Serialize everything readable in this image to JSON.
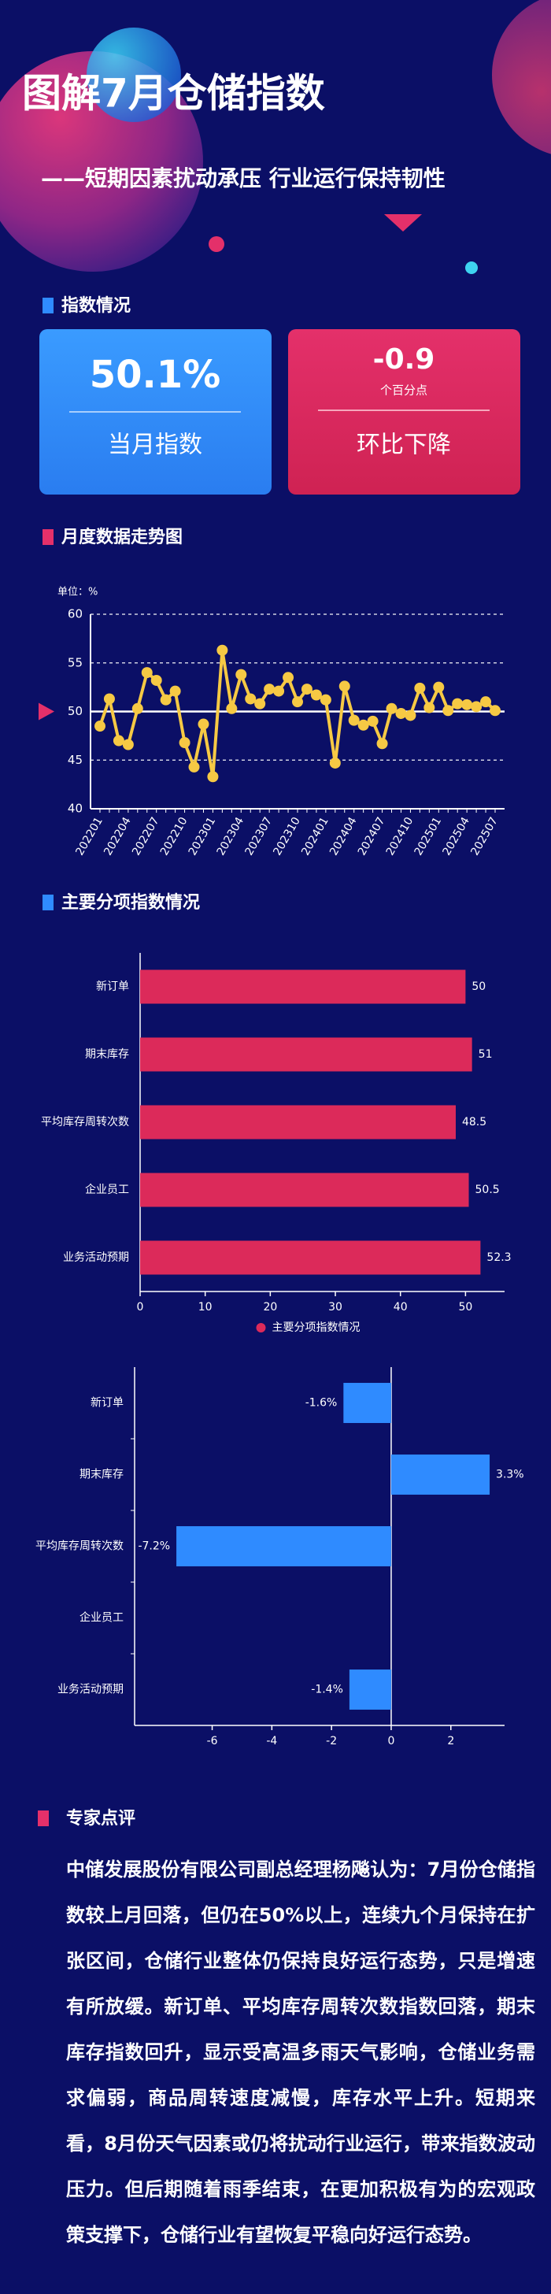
{
  "header": {
    "title": "图解7月仓储指数",
    "subtitle": "——短期因素扰动承压 行业运行保持韧性"
  },
  "sections": [
    "指数情况",
    "月度数据走势图",
    "主要分项指数情况",
    "专家点评"
  ],
  "kpis": [
    {
      "value": "50.1%",
      "label": "当月指数"
    },
    {
      "value": "-0.9",
      "unit": "个百分点",
      "label": "环比下降"
    }
  ],
  "chart_data": [
    {
      "type": "line",
      "unit_label": "单位：%",
      "categories": [
        "202201",
        null,
        null,
        "202204",
        null,
        null,
        "202207",
        null,
        null,
        "202210",
        null,
        null,
        "202301",
        null,
        null,
        "202304",
        null,
        null,
        "202307",
        null,
        null,
        "202310",
        null,
        null,
        "202401",
        null,
        null,
        "202404",
        null,
        null,
        "202407",
        null,
        null,
        "202410",
        null,
        null,
        "202501",
        null,
        null,
        "202504",
        null,
        null,
        "202507"
      ],
      "values": [
        48.5,
        51.3,
        47,
        46.6,
        50.3,
        54,
        53.2,
        51.2,
        52.1,
        46.8,
        44.3,
        48.7,
        43.3,
        56.3,
        50.3,
        53.8,
        51.3,
        50.8,
        52.3,
        52.1,
        53.5,
        51,
        52.3,
        51.7,
        51.2,
        44.7,
        52.6,
        49.1,
        48.6,
        49,
        46.7,
        50.3,
        49.8,
        49.6,
        52.4,
        50.4,
        52.5,
        50.1,
        50.8,
        50.7,
        50.5,
        51,
        50.1
      ],
      "color": "#f6c944",
      "ylim": [
        40,
        60
      ],
      "yticks": [
        40,
        45,
        50,
        55,
        60
      ],
      "grid": true,
      "reference_value": 50
    },
    {
      "type": "bar",
      "orientation": "horizontal",
      "categories": [
        "新订单",
        "期末库存",
        "平均库存周转次数",
        "企业员工",
        "业务活动预期"
      ],
      "series": [
        {
          "name": "主要分项指数情况",
          "color": "#dc2a5a",
          "values": [
            50,
            51,
            48.5,
            50.5,
            52.3
          ]
        }
      ],
      "xlim": [
        0,
        56
      ],
      "xticks": [
        0,
        10,
        20,
        30,
        40,
        50
      ],
      "legend": "bottom"
    },
    {
      "type": "bar",
      "orientation": "horizontal",
      "categories": [
        "新订单",
        "期末库存",
        "平均库存周转次数",
        "企业员工",
        "业务活动预期"
      ],
      "values": [
        -1.6,
        3.3,
        -7.2,
        null,
        -1.4
      ],
      "value_labels": [
        "-1.6%",
        "3.3%",
        "-7.2%",
        null,
        "-1.4%"
      ],
      "color": "#2f8bff",
      "xlim": [
        -8.6,
        3.8
      ],
      "xticks": [
        -6,
        -4,
        -2,
        0,
        2
      ]
    }
  ],
  "expert": {
    "text": "中储发展股份有限公司副总经理杨飚认为：7月份仓储指数较上月回落，但仍在50%以上，连续九个月保持在扩张区间，仓储行业整体仍保持良好运行态势，只是增速有所放缓。新订单、平均库存周转次数指数回落，期末库存指数回升，显示受高温多雨天气影响，仓储业务需求偏弱，商品周转速度减慢，库存水平上升。短期来看，8月份天气因素或仍将扰动行业运行，带来指数波动压力。但后期随着雨季结束，在更加积极有为的宏观政策支撑下，仓储行业有望恢复平稳向好运行态势。"
  }
}
